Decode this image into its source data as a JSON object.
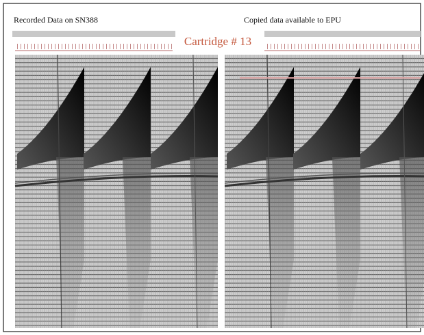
{
  "header": {
    "left_title": "Recorded Data on SN388",
    "right_title": "Copied data available to EPU",
    "center_label": "Cartridge # 13"
  }
}
